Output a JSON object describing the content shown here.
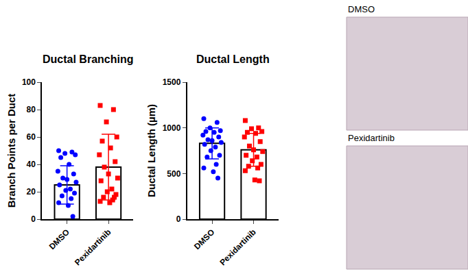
{
  "chart_data": [
    {
      "type": "bar",
      "title": "Ductal Branching",
      "y_label": "Branch Points per Duct",
      "categories": [
        "DMSO",
        "Pexidartinib"
      ],
      "values": [
        25,
        38
      ],
      "error": [
        14,
        24
      ],
      "points": [
        [
          50,
          49,
          48,
          47,
          45,
          40,
          35,
          33,
          30,
          29,
          27,
          25,
          22,
          21,
          19,
          17,
          15,
          12,
          10,
          2
        ],
        [
          83,
          80,
          71,
          60,
          57,
          52,
          47,
          42,
          38,
          33,
          30,
          28,
          22,
          20,
          18,
          16,
          14,
          13,
          12,
          16
        ]
      ],
      "colors": [
        "#0000ff",
        "#ff0000"
      ],
      "ylim": [
        0,
        100
      ],
      "yticks": [
        0,
        20,
        40,
        60,
        80,
        100
      ]
    },
    {
      "type": "bar",
      "title": "Ductal Length",
      "y_label": "Ductal Length (µm)",
      "categories": [
        "DMSO",
        "Pexidartinib"
      ],
      "values": [
        830,
        760
      ],
      "error": [
        170,
        180
      ],
      "points": [
        [
          1100,
          1060,
          1000,
          970,
          960,
          950,
          920,
          900,
          870,
          860,
          840,
          820,
          790,
          750,
          700,
          680,
          600,
          560,
          520,
          450
        ],
        [
          1080,
          1000,
          990,
          960,
          950,
          940,
          900,
          850,
          800,
          760,
          740,
          700,
          680,
          640,
          600,
          580,
          560,
          530,
          430,
          420
        ]
      ],
      "colors": [
        "#0000ff",
        "#ff0000"
      ],
      "ylim": [
        0,
        1500
      ],
      "yticks": [
        0,
        500,
        1000,
        1500
      ]
    }
  ],
  "images": [
    {
      "label": "DMSO"
    },
    {
      "label": "Pexidartinib"
    }
  ]
}
